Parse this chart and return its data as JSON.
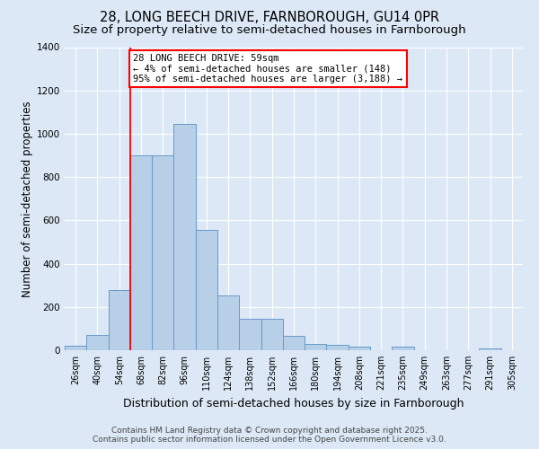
{
  "title_line1": "28, LONG BEECH DRIVE, FARNBOROUGH, GU14 0PR",
  "title_line2": "Size of property relative to semi-detached houses in Farnborough",
  "xlabel": "Distribution of semi-detached houses by size in Farnborough",
  "ylabel": "Number of semi-detached properties",
  "bin_labels": [
    "26sqm",
    "40sqm",
    "54sqm",
    "68sqm",
    "82sqm",
    "96sqm",
    "110sqm",
    "124sqm",
    "138sqm",
    "152sqm",
    "166sqm",
    "180sqm",
    "194sqm",
    "208sqm",
    "221sqm",
    "235sqm",
    "249sqm",
    "263sqm",
    "277sqm",
    "291sqm",
    "305sqm"
  ],
  "bar_values": [
    20,
    70,
    280,
    900,
    900,
    1045,
    555,
    255,
    145,
    145,
    65,
    30,
    25,
    15,
    0,
    15,
    0,
    0,
    0,
    10,
    0
  ],
  "bar_color": "#b8cfe8",
  "bar_edge_color": "#6699cc",
  "background_color": "#dce8f5",
  "grid_color": "#ffffff",
  "vline_x": 2.5,
  "vline_color": "red",
  "annotation_text": "28 LONG BEECH DRIVE: 59sqm\n← 4% of semi-detached houses are smaller (148)\n95% of semi-detached houses are larger (3,188) →",
  "annotation_box_color": "white",
  "annotation_box_edge": "red",
  "footer_text": "Contains HM Land Registry data © Crown copyright and database right 2025.\nContains public sector information licensed under the Open Government Licence v3.0.",
  "ylim": [
    0,
    1400
  ],
  "title_fontsize": 10.5,
  "subtitle_fontsize": 9.5,
  "axis_label_fontsize": 8.5,
  "tick_fontsize": 7,
  "annotation_fontsize": 7.5,
  "footer_fontsize": 6.5,
  "yticks": [
    0,
    200,
    400,
    600,
    800,
    1000,
    1200,
    1400
  ]
}
